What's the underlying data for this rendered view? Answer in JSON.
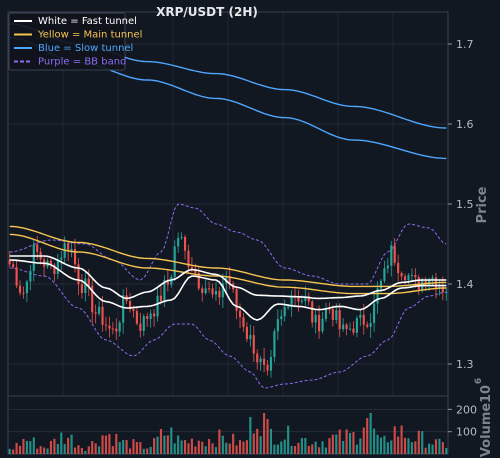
{
  "chart_data": {
    "type": "candlestick",
    "title": "XRP/USDT (2H)",
    "ylabel_price": "Price",
    "ylabel_volume": "Volume",
    "volume_multiplier_label": "10",
    "volume_multiplier_exp": "6",
    "price_ticks": [
      "1.3",
      "1.4",
      "1.5",
      "1.6",
      "1.7"
    ],
    "price_tick_values": [
      1.3,
      1.4,
      1.5,
      1.6,
      1.7
    ],
    "price_range": [
      1.26,
      1.74
    ],
    "volume_ticks": [
      "100",
      "200"
    ],
    "volume_tick_values": [
      100,
      200
    ],
    "volume_range": [
      0,
      260
    ],
    "n_candles": 128,
    "grid": true,
    "legend_position": "top-left",
    "legend": [
      {
        "label": "White = Fast tunnel",
        "color": "#ffffff",
        "text_color": "#ffffff",
        "dashed": false
      },
      {
        "label": "Yellow = Main tunnel",
        "color": "#f5c451",
        "text_color": "#f5c451",
        "dashed": false
      },
      {
        "label": "Blue = Slow tunnel",
        "color": "#4da6ff",
        "text_color": "#4da6ff",
        "dashed": false
      },
      {
        "label": "Purple = BB band",
        "color": "#8a6cf0",
        "text_color": "#8a6cf0",
        "dashed": true
      }
    ],
    "colors": {
      "up": "#26a69a",
      "down": "#ef5350",
      "fast": "#ffffff",
      "main": "#f5c451",
      "slow": "#4da6ff",
      "bb": "#8a6cf0",
      "background": "#121821",
      "grid": "#2a3140"
    },
    "close_anchors": [
      [
        0,
        1.425
      ],
      [
        4,
        1.39
      ],
      [
        7,
        1.44
      ],
      [
        12,
        1.42
      ],
      [
        17,
        1.45
      ],
      [
        21,
        1.4
      ],
      [
        26,
        1.36
      ],
      [
        30,
        1.34
      ],
      [
        34,
        1.38
      ],
      [
        38,
        1.35
      ],
      [
        42,
        1.37
      ],
      [
        46,
        1.4
      ],
      [
        49,
        1.46
      ],
      [
        52,
        1.43
      ],
      [
        56,
        1.4
      ],
      [
        60,
        1.38
      ],
      [
        63,
        1.41
      ],
      [
        67,
        1.36
      ],
      [
        70,
        1.33
      ],
      [
        73,
        1.3
      ],
      [
        75,
        1.28
      ],
      [
        78,
        1.35
      ],
      [
        82,
        1.39
      ],
      [
        86,
        1.38
      ],
      [
        89,
        1.35
      ],
      [
        93,
        1.37
      ],
      [
        97,
        1.34
      ],
      [
        101,
        1.35
      ],
      [
        105,
        1.36
      ],
      [
        108,
        1.4
      ],
      [
        111,
        1.44
      ],
      [
        114,
        1.42
      ],
      [
        118,
        1.4
      ],
      [
        122,
        1.41
      ],
      [
        127,
        1.395
      ]
    ],
    "fast_upper_anchors": [
      [
        0,
        1.435
      ],
      [
        10,
        1.435
      ],
      [
        20,
        1.42
      ],
      [
        28,
        1.395
      ],
      [
        34,
        1.382
      ],
      [
        40,
        1.39
      ],
      [
        47,
        1.405
      ],
      [
        53,
        1.418
      ],
      [
        60,
        1.412
      ],
      [
        66,
        1.396
      ],
      [
        72,
        1.386
      ],
      [
        78,
        1.385
      ],
      [
        84,
        1.384
      ],
      [
        90,
        1.382
      ],
      [
        96,
        1.383
      ],
      [
        102,
        1.385
      ],
      [
        108,
        1.392
      ],
      [
        114,
        1.402
      ],
      [
        120,
        1.405
      ],
      [
        127,
        1.405
      ]
    ],
    "fast_lower_anchors": [
      [
        0,
        1.43
      ],
      [
        10,
        1.426
      ],
      [
        20,
        1.405
      ],
      [
        28,
        1.378
      ],
      [
        34,
        1.37
      ],
      [
        40,
        1.372
      ],
      [
        47,
        1.38
      ],
      [
        53,
        1.41
      ],
      [
        60,
        1.405
      ],
      [
        66,
        1.372
      ],
      [
        72,
        1.355
      ],
      [
        78,
        1.375
      ],
      [
        84,
        1.372
      ],
      [
        90,
        1.368
      ],
      [
        96,
        1.372
      ],
      [
        102,
        1.368
      ],
      [
        108,
        1.382
      ],
      [
        114,
        1.395
      ],
      [
        120,
        1.398
      ],
      [
        127,
        1.398
      ]
    ],
    "main_upper_anchors": [
      [
        0,
        1.472
      ],
      [
        20,
        1.452
      ],
      [
        40,
        1.432
      ],
      [
        60,
        1.42
      ],
      [
        80,
        1.405
      ],
      [
        100,
        1.397
      ],
      [
        110,
        1.397
      ],
      [
        127,
        1.402
      ]
    ],
    "main_lower_anchors": [
      [
        0,
        1.462
      ],
      [
        20,
        1.44
      ],
      [
        40,
        1.42
      ],
      [
        60,
        1.41
      ],
      [
        80,
        1.396
      ],
      [
        100,
        1.388
      ],
      [
        110,
        1.388
      ],
      [
        127,
        1.395
      ]
    ],
    "slow_upper_anchors": [
      [
        0,
        1.725
      ],
      [
        20,
        1.7
      ],
      [
        40,
        1.678
      ],
      [
        60,
        1.663
      ],
      [
        80,
        1.643
      ],
      [
        100,
        1.622
      ],
      [
        127,
        1.595
      ]
    ],
    "slow_lower_anchors": [
      [
        0,
        1.708
      ],
      [
        20,
        1.677
      ],
      [
        40,
        1.655
      ],
      [
        60,
        1.632
      ],
      [
        80,
        1.608
      ],
      [
        100,
        1.58
      ],
      [
        127,
        1.557
      ]
    ],
    "bb_upper_anchors": [
      [
        0,
        1.44
      ],
      [
        12,
        1.455
      ],
      [
        22,
        1.45
      ],
      [
        30,
        1.43
      ],
      [
        38,
        1.405
      ],
      [
        44,
        1.44
      ],
      [
        49,
        1.5
      ],
      [
        54,
        1.495
      ],
      [
        60,
        1.475
      ],
      [
        66,
        1.465
      ],
      [
        72,
        1.455
      ],
      [
        80,
        1.42
      ],
      [
        88,
        1.41
      ],
      [
        96,
        1.4
      ],
      [
        104,
        1.4
      ],
      [
        110,
        1.44
      ],
      [
        116,
        1.475
      ],
      [
        122,
        1.47
      ],
      [
        127,
        1.45
      ]
    ],
    "bb_lower_anchors": [
      [
        0,
        1.42
      ],
      [
        10,
        1.41
      ],
      [
        20,
        1.37
      ],
      [
        28,
        1.33
      ],
      [
        36,
        1.31
      ],
      [
        42,
        1.33
      ],
      [
        48,
        1.35
      ],
      [
        53,
        1.35
      ],
      [
        58,
        1.33
      ],
      [
        64,
        1.31
      ],
      [
        70,
        1.29
      ],
      [
        74,
        1.27
      ],
      [
        80,
        1.275
      ],
      [
        88,
        1.28
      ],
      [
        96,
        1.29
      ],
      [
        104,
        1.31
      ],
      [
        110,
        1.33
      ],
      [
        116,
        1.37
      ],
      [
        122,
        1.385
      ],
      [
        127,
        1.39
      ]
    ],
    "volume_anchors": [
      [
        0,
        30
      ],
      [
        5,
        80
      ],
      [
        10,
        40
      ],
      [
        16,
        100
      ],
      [
        22,
        40
      ],
      [
        28,
        110
      ],
      [
        34,
        60
      ],
      [
        40,
        40
      ],
      [
        46,
        120
      ],
      [
        50,
        70
      ],
      [
        56,
        80
      ],
      [
        62,
        90
      ],
      [
        68,
        60
      ],
      [
        72,
        240
      ],
      [
        76,
        120
      ],
      [
        82,
        100
      ],
      [
        86,
        80
      ],
      [
        90,
        70
      ],
      [
        95,
        90
      ],
      [
        100,
        100
      ],
      [
        104,
        200
      ],
      [
        108,
        60
      ],
      [
        112,
        130
      ],
      [
        118,
        90
      ],
      [
        127,
        50
      ]
    ]
  }
}
